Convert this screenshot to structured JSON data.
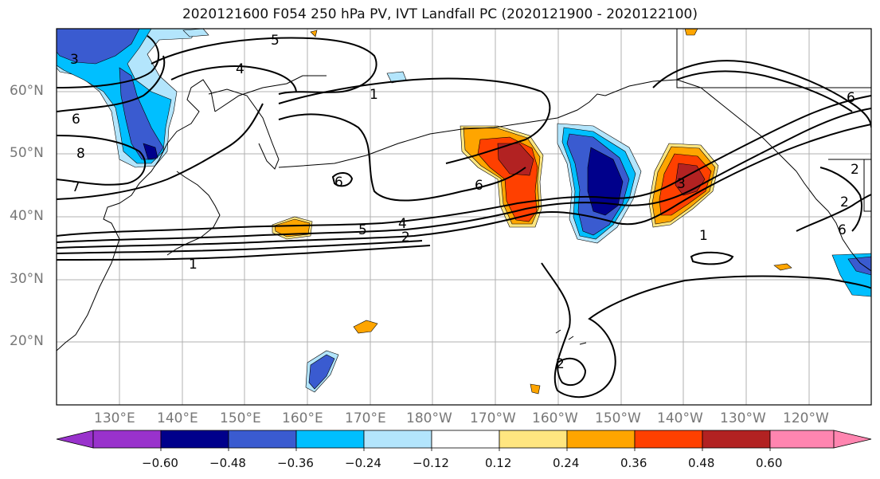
{
  "title": "2020121600 F054 250 hPa PV, IVT Landfall PC (2020121900 - 2020122100)",
  "lat_labels": [
    "60°N",
    "50°N",
    "40°N",
    "30°N",
    "20°N"
  ],
  "lon_labels": [
    "130°E",
    "140°E",
    "150°E",
    "160°E",
    "170°E",
    "180°W",
    "170°W",
    "160°W",
    "150°W",
    "140°W",
    "130°W",
    "120°W"
  ],
  "contour_labels": [
    "3",
    "5",
    "4",
    "1",
    "6",
    "8",
    "7",
    "6",
    "6",
    "5",
    "4",
    "2",
    "1",
    "3",
    "1",
    "6",
    "2",
    "2",
    "2",
    "6"
  ],
  "colorbar": {
    "ticks": [
      "−0.60",
      "−0.48",
      "−0.36",
      "−0.24",
      "−0.12",
      "0.12",
      "0.24",
      "0.36",
      "0.48",
      "0.60"
    ],
    "colors": [
      "#9932cc",
      "#00008b",
      "#3a5bd0",
      "#00bfff",
      "#b3e5fc",
      "#ffffff",
      "#ffe680",
      "#ffa500",
      "#ff4000",
      "#b22222",
      "#ff85b0"
    ]
  },
  "fill_colors": {
    "neg_3": "#00008b",
    "neg_2": "#3a5bd0",
    "neg_1": "#00bfff",
    "neg_0": "#b3e5fc",
    "pos_0": "#ffe680",
    "pos_1": "#ffa500",
    "pos_2": "#ff4000",
    "pos_3": "#b22222"
  }
}
